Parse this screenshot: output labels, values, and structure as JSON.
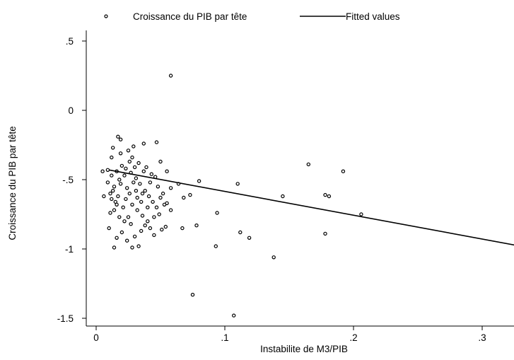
{
  "chart_data": {
    "type": "scatter",
    "xlabel": "Instabilite de M3/PIB",
    "ylabel": "Croissance du PIB par tête",
    "xlim": [
      0,
      0.33
    ],
    "ylim": [
      -1.55,
      0.6
    ],
    "x_ticks": [
      {
        "value": 0,
        "label": "0"
      },
      {
        "value": 0.1,
        "label": ".1"
      },
      {
        "value": 0.2,
        "label": ".2"
      },
      {
        "value": 0.3,
        "label": ".3"
      }
    ],
    "y_ticks": [
      {
        "value": 0.5,
        "label": ".5"
      },
      {
        "value": 0,
        "label": "0"
      },
      {
        "value": -0.5,
        "label": "-.5"
      },
      {
        "value": -1,
        "label": "-1"
      },
      {
        "value": -1.5,
        "label": "-1.5"
      }
    ],
    "legend": {
      "position": "top",
      "entries": [
        {
          "label": "Croissance du PIB par tête",
          "marker": "hollow-circle"
        },
        {
          "label": "Fitted values",
          "marker": "line"
        }
      ]
    },
    "fitted_line": {
      "name": "Fitted values",
      "points": [
        [
          0.01,
          -0.43
        ],
        [
          0.33,
          -0.98
        ]
      ]
    },
    "series": [
      {
        "name": "Croissance du PIB par tête",
        "points": [
          [
            0.058,
            0.25
          ],
          [
            0.075,
            -1.33
          ],
          [
            0.107,
            -1.48
          ],
          [
            0.138,
            -1.06
          ],
          [
            0.093,
            -0.98
          ],
          [
            0.119,
            -0.92
          ],
          [
            0.112,
            -0.88
          ],
          [
            0.165,
            -0.39
          ],
          [
            0.192,
            -0.44
          ],
          [
            0.181,
            -0.62
          ],
          [
            0.178,
            -0.61
          ],
          [
            0.145,
            -0.62
          ],
          [
            0.178,
            -0.89
          ],
          [
            0.206,
            -0.75
          ],
          [
            0.11,
            -0.53
          ],
          [
            0.094,
            -0.74
          ],
          [
            0.068,
            -0.63
          ],
          [
            0.078,
            -0.83
          ],
          [
            0.073,
            -0.61
          ],
          [
            0.08,
            -0.51
          ],
          [
            0.064,
            -0.53
          ],
          [
            0.067,
            -0.85
          ],
          [
            0.058,
            -0.72
          ],
          [
            0.058,
            -0.56
          ],
          [
            0.055,
            -0.67
          ],
          [
            0.054,
            -0.84
          ],
          [
            0.051,
            -0.86
          ],
          [
            0.052,
            -0.6
          ],
          [
            0.055,
            -0.44
          ],
          [
            0.05,
            -0.37
          ],
          [
            0.047,
            -0.23
          ],
          [
            0.037,
            -0.24
          ],
          [
            0.029,
            -0.26
          ],
          [
            0.017,
            -0.19
          ],
          [
            0.019,
            -0.21
          ],
          [
            0.013,
            -0.27
          ],
          [
            0.025,
            -0.29
          ],
          [
            0.019,
            -0.31
          ],
          [
            0.012,
            -0.34
          ],
          [
            0.028,
            -0.34
          ],
          [
            0.014,
            -0.99
          ],
          [
            0.024,
            -0.94
          ],
          [
            0.028,
            -0.99
          ],
          [
            0.033,
            -0.98
          ],
          [
            0.009,
            -0.43
          ],
          [
            0.005,
            -0.44
          ],
          [
            0.006,
            -0.62
          ],
          [
            0.011,
            -0.74
          ],
          [
            0.01,
            -0.85
          ],
          [
            0.016,
            -0.92
          ],
          [
            0.02,
            -0.88
          ],
          [
            0.03,
            -0.91
          ],
          [
            0.035,
            -0.87
          ],
          [
            0.042,
            -0.85
          ],
          [
            0.045,
            -0.9
          ],
          [
            0.04,
            -0.8
          ],
          [
            0.036,
            -0.76
          ],
          [
            0.032,
            -0.72
          ],
          [
            0.025,
            -0.77
          ],
          [
            0.021,
            -0.7
          ],
          [
            0.015,
            -0.66
          ],
          [
            0.011,
            -0.6
          ],
          [
            0.014,
            -0.55
          ],
          [
            0.018,
            -0.5
          ],
          [
            0.022,
            -0.47
          ],
          [
            0.027,
            -0.45
          ],
          [
            0.031,
            -0.49
          ],
          [
            0.034,
            -0.53
          ],
          [
            0.038,
            -0.58
          ],
          [
            0.041,
            -0.62
          ],
          [
            0.044,
            -0.66
          ],
          [
            0.047,
            -0.7
          ],
          [
            0.049,
            -0.75
          ],
          [
            0.043,
            -0.46
          ],
          [
            0.039,
            -0.41
          ],
          [
            0.033,
            -0.38
          ],
          [
            0.026,
            -0.37
          ],
          [
            0.02,
            -0.4
          ],
          [
            0.016,
            -0.44
          ],
          [
            0.012,
            -0.47
          ],
          [
            0.009,
            -0.52
          ],
          [
            0.013,
            -0.58
          ],
          [
            0.017,
            -0.62
          ],
          [
            0.023,
            -0.64
          ],
          [
            0.028,
            -0.68
          ],
          [
            0.032,
            -0.63
          ],
          [
            0.036,
            -0.6
          ],
          [
            0.024,
            -0.56
          ],
          [
            0.019,
            -0.53
          ],
          [
            0.029,
            -0.52
          ],
          [
            0.035,
            -0.66
          ],
          [
            0.04,
            -0.7
          ],
          [
            0.027,
            -0.82
          ],
          [
            0.022,
            -0.8
          ],
          [
            0.018,
            -0.77
          ],
          [
            0.014,
            -0.72
          ],
          [
            0.046,
            -0.48
          ],
          [
            0.042,
            -0.52
          ],
          [
            0.031,
            -0.58
          ],
          [
            0.026,
            -0.6
          ],
          [
            0.012,
            -0.64
          ],
          [
            0.016,
            -0.68
          ],
          [
            0.037,
            -0.44
          ],
          [
            0.03,
            -0.41
          ],
          [
            0.023,
            -0.42
          ],
          [
            0.048,
            -0.55
          ],
          [
            0.05,
            -0.63
          ],
          [
            0.053,
            -0.68
          ],
          [
            0.045,
            -0.77
          ],
          [
            0.038,
            -0.83
          ]
        ]
      }
    ]
  }
}
